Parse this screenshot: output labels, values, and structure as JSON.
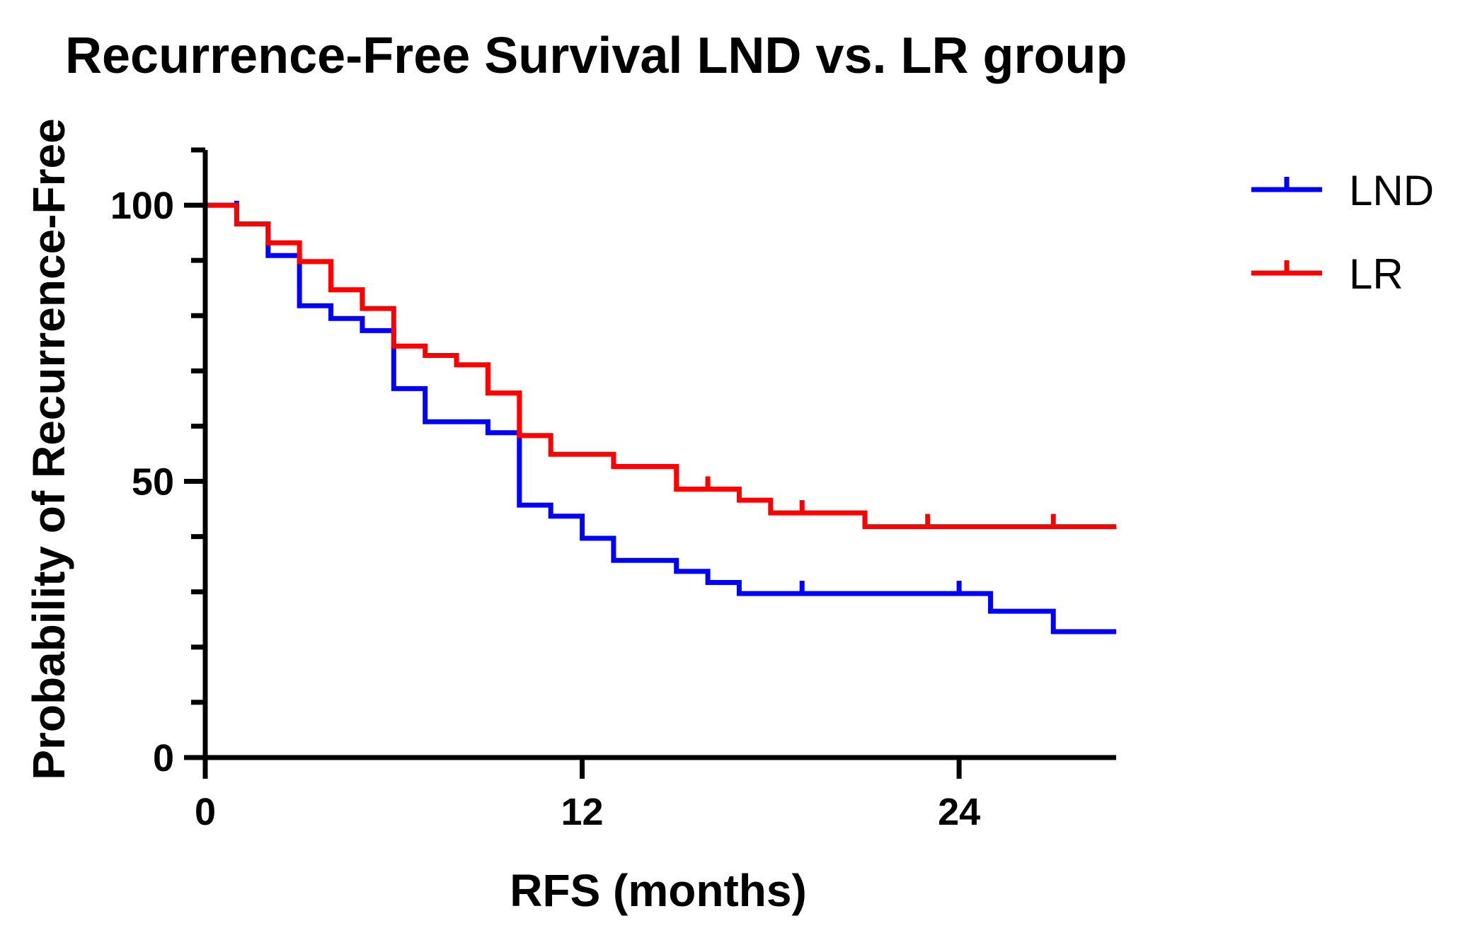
{
  "chart_data": {
    "type": "line",
    "step": true,
    "title": "Recurrence-Free Survival LND vs. LR group",
    "xlabel": "RFS (months)",
    "ylabel": "Probability of Recurrence-Free",
    "xlim": [
      0,
      29
    ],
    "ylim": [
      0,
      110
    ],
    "xticks": [
      0,
      12,
      24
    ],
    "xtick_labels": [
      "0",
      "12",
      "24"
    ],
    "yticks": [
      0,
      50,
      100
    ],
    "ytick_labels": [
      "0",
      "50",
      "100"
    ],
    "legend_position": "top-right",
    "series": [
      {
        "name": "LND",
        "color": "#0000ff",
        "points": [
          [
            0,
            100
          ],
          [
            1,
            100
          ],
          [
            1,
            96.6
          ],
          [
            2,
            96.6
          ],
          [
            2,
            90.9
          ],
          [
            3,
            90.9
          ],
          [
            3,
            81.8
          ],
          [
            4,
            81.8
          ],
          [
            4,
            79.5
          ],
          [
            5,
            79.5
          ],
          [
            5,
            77.3
          ],
          [
            6,
            77.3
          ],
          [
            6,
            66.8
          ],
          [
            7,
            66.8
          ],
          [
            7,
            60.8
          ],
          [
            9,
            60.8
          ],
          [
            9,
            58.8
          ],
          [
            10,
            58.8
          ],
          [
            10,
            45.7
          ],
          [
            11,
            45.7
          ],
          [
            11,
            43.7
          ],
          [
            12,
            43.7
          ],
          [
            12,
            39.7
          ],
          [
            13,
            39.7
          ],
          [
            13,
            35.7
          ],
          [
            15,
            35.7
          ],
          [
            15,
            33.7
          ],
          [
            16,
            33.7
          ],
          [
            16,
            31.7
          ],
          [
            17,
            31.7
          ],
          [
            17,
            29.7
          ],
          [
            25,
            29.7
          ],
          [
            25,
            26.5
          ],
          [
            27,
            26.5
          ],
          [
            27,
            22.8
          ],
          [
            29,
            22.8
          ]
        ],
        "censored": [
          [
            1,
            98.5
          ],
          [
            19,
            29.7
          ],
          [
            24,
            29.7
          ]
        ]
      },
      {
        "name": "LR",
        "color": "#ff0000",
        "points": [
          [
            0,
            100
          ],
          [
            1,
            100
          ],
          [
            1,
            96.6
          ],
          [
            2,
            96.6
          ],
          [
            2,
            93.2
          ],
          [
            3,
            93.2
          ],
          [
            3,
            89.8
          ],
          [
            4,
            89.8
          ],
          [
            4,
            84.7
          ],
          [
            5,
            84.7
          ],
          [
            5,
            81.3
          ],
          [
            6,
            81.3
          ],
          [
            6,
            74.5
          ],
          [
            7,
            74.5
          ],
          [
            7,
            72.8
          ],
          [
            8,
            72.8
          ],
          [
            8,
            71.1
          ],
          [
            9,
            71.1
          ],
          [
            9,
            66.0
          ],
          [
            10,
            66.0
          ],
          [
            10,
            58.3
          ],
          [
            11,
            58.3
          ],
          [
            11,
            54.9
          ],
          [
            13,
            54.9
          ],
          [
            13,
            52.7
          ],
          [
            15,
            52.7
          ],
          [
            15,
            48.6
          ],
          [
            17,
            48.6
          ],
          [
            17,
            46.6
          ],
          [
            18,
            46.6
          ],
          [
            18,
            44.3
          ],
          [
            21,
            44.3
          ],
          [
            21,
            41.8
          ],
          [
            29,
            41.8
          ]
        ],
        "censored": [
          [
            5,
            82.5
          ],
          [
            16,
            48.6
          ],
          [
            19,
            44.3
          ],
          [
            23,
            41.8
          ],
          [
            27,
            41.8
          ]
        ]
      }
    ]
  }
}
